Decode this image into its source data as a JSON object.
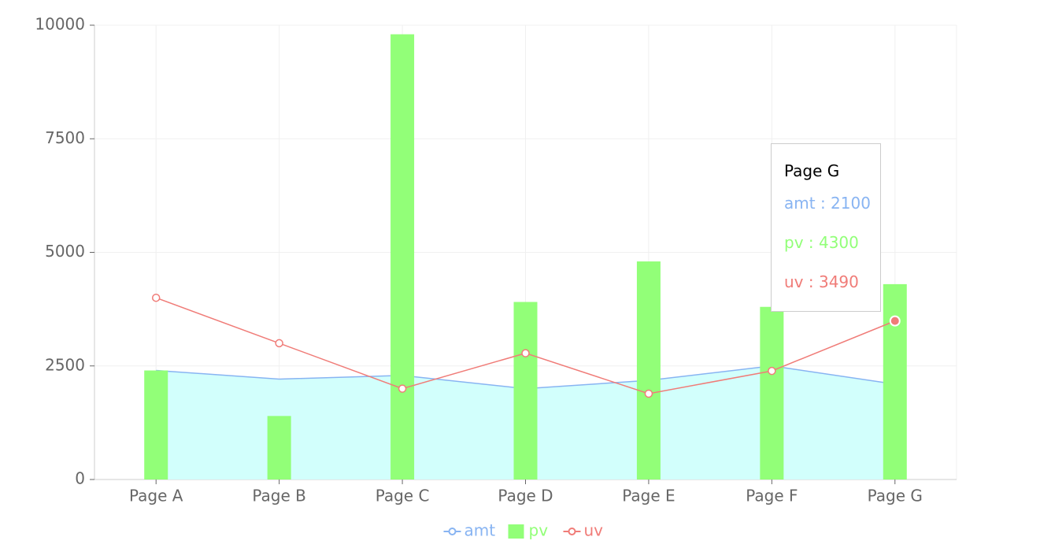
{
  "chart_data": {
    "type": "composed",
    "categories": [
      "Page A",
      "Page B",
      "Page C",
      "Page D",
      "Page E",
      "Page F",
      "Page G"
    ],
    "series": [
      {
        "name": "amt",
        "type": "area",
        "color": "#88b4f2",
        "fill": "#d2fffc",
        "values": [
          2400,
          2210,
          2290,
          2000,
          2181,
          2500,
          2100
        ]
      },
      {
        "name": "pv",
        "type": "bar",
        "color": "#92ff78",
        "values": [
          2400,
          1398,
          9800,
          3908,
          4800,
          3800,
          4300
        ]
      },
      {
        "name": "uv",
        "type": "line",
        "color": "#f07c78",
        "values": [
          4000,
          3000,
          2000,
          2780,
          1890,
          2390,
          3490
        ]
      }
    ],
    "ylim": [
      0,
      10000
    ],
    "yticks": [
      0,
      2500,
      5000,
      7500,
      10000
    ],
    "grid": true,
    "legend": "bottom",
    "tooltip": {
      "category": "Page G",
      "separator": " : "
    }
  }
}
